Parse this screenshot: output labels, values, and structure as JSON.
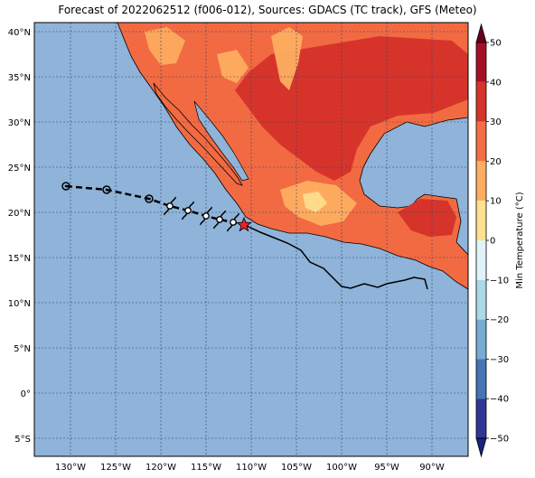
{
  "title": "Forecast of 2022062512 (f006-012), Sources: GDACS (TC track), GFS (Meteo)",
  "colorbar_label": "Min Temperature (°C)",
  "colorbar_ticks": [
    "50",
    "40",
    "30",
    "20",
    "10",
    "0",
    "−10",
    "−20",
    "−30",
    "−40",
    "−50"
  ],
  "colorbar_colors": [
    "#67001f",
    "#b2182b",
    "#d6342a",
    "#f46d43",
    "#fdae61",
    "#fee090",
    "#f7f7f7",
    "#e0f3f8",
    "#abd9e9",
    "#74add1",
    "#4575b4",
    "#313695",
    "#1a237e"
  ],
  "lon_labels": [
    "130°W",
    "125°W",
    "120°W",
    "115°W",
    "110°W",
    "105°W",
    "100°W",
    "95°W",
    "90°W"
  ],
  "lat_labels": [
    "40°N",
    "35°N",
    "30°N",
    "25°N",
    "20°N",
    "15°N",
    "10°N",
    "5°N",
    "0°",
    "5°S"
  ],
  "colors": {
    "ocean": "#8fb3d9",
    "land_hot": "#d73027",
    "land_warm": "#f46d43",
    "land_mild": "#fdae61",
    "land_cool": "#fee090"
  },
  "chart_data": {
    "type": "map",
    "extent": {
      "lon_min": -134,
      "lon_max": -86,
      "lat_min": -7,
      "lat_max": 41
    },
    "tc_past_track": [
      {
        "lon": -130.5,
        "lat": 22.9
      },
      {
        "lon": -126.0,
        "lat": 22.5
      },
      {
        "lon": -121.3,
        "lat": 21.5
      }
    ],
    "tc_forecast_positions": [
      {
        "lon": -119.0,
        "lat": 20.7
      },
      {
        "lon": -117.0,
        "lat": 20.2
      },
      {
        "lon": -115.0,
        "lat": 19.6
      },
      {
        "lon": -113.5,
        "lat": 19.2
      },
      {
        "lon": -112.0,
        "lat": 18.9
      }
    ],
    "tc_current": {
      "lon": -110.8,
      "lat": 18.6
    },
    "forecast_path": [
      [
        -110.5,
        18.5
      ],
      [
        -109.0,
        17.8
      ],
      [
        -107.5,
        17.2
      ],
      [
        -106.0,
        16.6
      ],
      [
        -104.5,
        15.8
      ],
      [
        -103.5,
        14.5
      ],
      [
        -102.0,
        13.8
      ],
      [
        -101.0,
        12.8
      ],
      [
        -100.0,
        11.8
      ],
      [
        -99.0,
        11.6
      ],
      [
        -97.5,
        12.1
      ],
      [
        -96.0,
        11.7
      ],
      [
        -95.0,
        12.1
      ],
      [
        -93.0,
        12.5
      ],
      [
        -92.0,
        12.8
      ],
      [
        -90.8,
        12.6
      ],
      [
        -90.5,
        11.5
      ]
    ],
    "colorbar": {
      "min": -50,
      "max": 50,
      "step": 10,
      "extend": "both"
    }
  }
}
